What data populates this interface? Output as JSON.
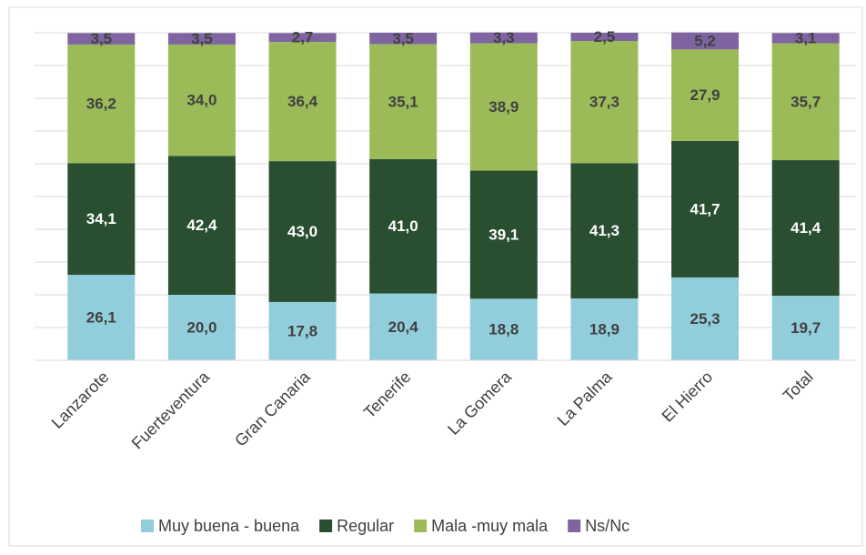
{
  "chart_data": {
    "type": "stacked_bar",
    "categories": [
      "Lanzarote",
      "Fuerteventura",
      "Gran Canaria",
      "Tenerife",
      "La Gomera",
      "La Palma",
      "El Hierro",
      "Total"
    ],
    "series": [
      {
        "name": "Muy buena - buena",
        "color": "#92cddc",
        "label_color": "#404040",
        "values": [
          26.1,
          20.0,
          17.8,
          20.4,
          18.8,
          18.9,
          25.3,
          19.7
        ],
        "value_labels": [
          "26,1",
          "20,0",
          "17,8",
          "20,4",
          "18,8",
          "18,9",
          "25,3",
          "19,7"
        ]
      },
      {
        "name": "Regular",
        "color": "#2a4e30",
        "label_color": "#ffffff",
        "values": [
          34.1,
          42.4,
          43.0,
          41.0,
          39.1,
          41.3,
          41.7,
          41.4
        ],
        "value_labels": [
          "34,1",
          "42,4",
          "43,0",
          "41,0",
          "39,1",
          "41,3",
          "41,7",
          "41,4"
        ]
      },
      {
        "name": "Mala -muy mala",
        "color": "#9bbb59",
        "label_color": "#404040",
        "values": [
          36.2,
          34.0,
          36.4,
          35.1,
          38.9,
          37.3,
          27.9,
          35.7
        ],
        "value_labels": [
          "36,2",
          "34,0",
          "36,4",
          "35,1",
          "38,9",
          "37,3",
          "27,9",
          "35,7"
        ]
      },
      {
        "name": "Ns/Nc",
        "color": "#8064a2",
        "label_color": "#404040",
        "values": [
          3.5,
          3.5,
          2.7,
          3.5,
          3.3,
          2.5,
          5.2,
          3.1
        ],
        "value_labels": [
          "3,5",
          "3,5",
          "2,7",
          "3,5",
          "3,3",
          "2,5",
          "5,2",
          "3,1"
        ]
      }
    ],
    "ylim": [
      0,
      100
    ],
    "yticks": [
      0,
      10,
      20,
      30,
      40,
      50,
      60,
      70,
      80,
      90,
      100
    ],
    "grid": true,
    "legend": "bottom"
  }
}
